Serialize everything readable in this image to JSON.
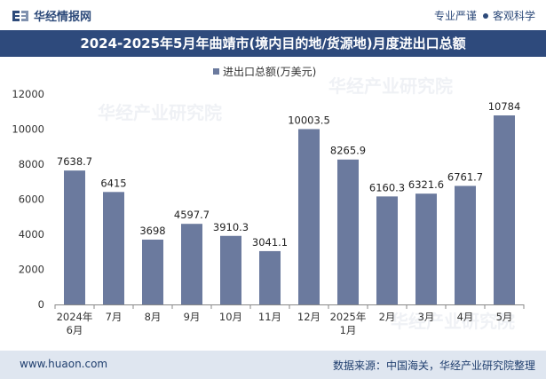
{
  "header": {
    "brand": "华经情报网",
    "tagline_left": "专业严谨",
    "tagline_right": "客观科学",
    "logo_icon": "brand-logo-icon"
  },
  "title": "2024-2025年5月年曲靖市(境内目的地/货源地)月度进出口总额",
  "watermark": "华经产业研究院",
  "footer": {
    "website": "www.huaon.com",
    "source": "数据来源：中国海关，华经产业研究院整理"
  },
  "colors": {
    "bar": "#6b7a9e",
    "title_bg": "#2e4a7c",
    "footer_bg": "#dfe6f0"
  },
  "chart_data": {
    "type": "bar",
    "title": "2024-2025年5月年曲靖市(境内目的地/货源地)月度进出口总额",
    "legend": "进出口总额(万美元)",
    "legend_position": "top-center",
    "categories": [
      [
        "2024年",
        "6月"
      ],
      [
        "7月"
      ],
      [
        "8月"
      ],
      [
        "9月"
      ],
      [
        "10月"
      ],
      [
        "11月"
      ],
      [
        "12月"
      ],
      [
        "2025年",
        "1月"
      ],
      [
        "2月"
      ],
      [
        "3月"
      ],
      [
        "4月"
      ],
      [
        "5月"
      ]
    ],
    "values": [
      7638.7,
      6415,
      3698,
      4597.7,
      3910.3,
      3041.1,
      10003.5,
      8265.9,
      6160.3,
      6321.6,
      6761.7,
      10784
    ],
    "value_labels": [
      "7638.7",
      "6415",
      "3698",
      "4597.7",
      "3910.3",
      "3041.1",
      "10003.5",
      "8265.9",
      "6160.3",
      "6321.6",
      "6761.7",
      "10784"
    ],
    "ylim": [
      0,
      12000
    ],
    "yticks": [
      0,
      2000,
      4000,
      6000,
      8000,
      10000,
      12000
    ],
    "grid": false,
    "xlabel": "",
    "ylabel": ""
  }
}
